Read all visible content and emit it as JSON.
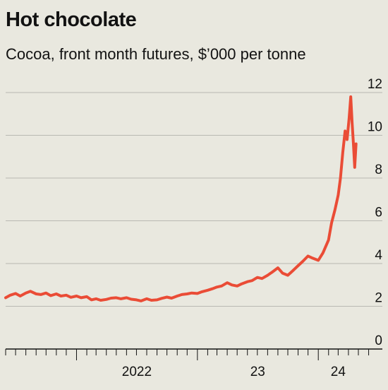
{
  "chart_data": {
    "type": "line",
    "title": "Hot chocolate",
    "subtitle": "Cocoa, front month futures, $’000 per tonne",
    "xlabel": "",
    "ylabel": "",
    "x_tick_labels": [
      "2022",
      "23",
      "24"
    ],
    "y_ticks": [
      0,
      2,
      4,
      6,
      8,
      10,
      12
    ],
    "ylim": [
      0,
      12
    ],
    "grid": true,
    "y_axis_side": "right",
    "x_domain": [
      "2021-06-01",
      "2024-05-01"
    ],
    "series": [
      {
        "color": "#ea4c36",
        "points": [
          [
            "2021-06-01",
            2.4
          ],
          [
            "2021-06-15",
            2.52
          ],
          [
            "2021-07-01",
            2.6
          ],
          [
            "2021-07-15",
            2.48
          ],
          [
            "2021-08-01",
            2.62
          ],
          [
            "2021-08-15",
            2.7
          ],
          [
            "2021-09-01",
            2.58
          ],
          [
            "2021-09-15",
            2.55
          ],
          [
            "2021-10-01",
            2.62
          ],
          [
            "2021-10-15",
            2.5
          ],
          [
            "2021-11-01",
            2.58
          ],
          [
            "2021-11-15",
            2.48
          ],
          [
            "2021-12-01",
            2.52
          ],
          [
            "2021-12-15",
            2.42
          ],
          [
            "2022-01-01",
            2.48
          ],
          [
            "2022-01-15",
            2.4
          ],
          [
            "2022-02-01",
            2.45
          ],
          [
            "2022-02-15",
            2.3
          ],
          [
            "2022-03-01",
            2.35
          ],
          [
            "2022-03-15",
            2.28
          ],
          [
            "2022-04-01",
            2.32
          ],
          [
            "2022-04-15",
            2.38
          ],
          [
            "2022-05-01",
            2.4
          ],
          [
            "2022-05-15",
            2.35
          ],
          [
            "2022-06-01",
            2.4
          ],
          [
            "2022-06-15",
            2.33
          ],
          [
            "2022-07-01",
            2.3
          ],
          [
            "2022-07-15",
            2.25
          ],
          [
            "2022-08-01",
            2.35
          ],
          [
            "2022-08-15",
            2.28
          ],
          [
            "2022-09-01",
            2.3
          ],
          [
            "2022-09-15",
            2.37
          ],
          [
            "2022-10-01",
            2.43
          ],
          [
            "2022-10-15",
            2.38
          ],
          [
            "2022-11-01",
            2.48
          ],
          [
            "2022-11-15",
            2.55
          ],
          [
            "2022-12-01",
            2.58
          ],
          [
            "2022-12-15",
            2.62
          ],
          [
            "2023-01-01",
            2.6
          ],
          [
            "2023-01-15",
            2.68
          ],
          [
            "2023-02-01",
            2.75
          ],
          [
            "2023-02-15",
            2.82
          ],
          [
            "2023-03-01",
            2.9
          ],
          [
            "2023-03-15",
            2.95
          ],
          [
            "2023-04-01",
            3.1
          ],
          [
            "2023-04-15",
            3.0
          ],
          [
            "2023-05-01",
            2.95
          ],
          [
            "2023-05-15",
            3.05
          ],
          [
            "2023-06-01",
            3.15
          ],
          [
            "2023-06-15",
            3.2
          ],
          [
            "2023-07-01",
            3.35
          ],
          [
            "2023-07-15",
            3.3
          ],
          [
            "2023-08-01",
            3.45
          ],
          [
            "2023-08-15",
            3.6
          ],
          [
            "2023-09-01",
            3.8
          ],
          [
            "2023-09-15",
            3.55
          ],
          [
            "2023-10-01",
            3.45
          ],
          [
            "2023-10-15",
            3.65
          ],
          [
            "2023-11-01",
            3.9
          ],
          [
            "2023-11-15",
            4.1
          ],
          [
            "2023-12-01",
            4.35
          ],
          [
            "2023-12-15",
            4.25
          ],
          [
            "2024-01-01",
            4.15
          ],
          [
            "2024-01-15",
            4.5
          ],
          [
            "2024-02-01",
            5.1
          ],
          [
            "2024-02-10",
            5.9
          ],
          [
            "2024-02-20",
            6.5
          ],
          [
            "2024-03-01",
            7.2
          ],
          [
            "2024-03-08",
            8.0
          ],
          [
            "2024-03-15",
            9.2
          ],
          [
            "2024-03-22",
            10.2
          ],
          [
            "2024-03-28",
            9.8
          ],
          [
            "2024-04-03",
            10.8
          ],
          [
            "2024-04-08",
            11.8
          ],
          [
            "2024-04-12",
            10.6
          ],
          [
            "2024-04-16",
            9.6
          ],
          [
            "2024-04-20",
            8.5
          ],
          [
            "2024-04-24",
            9.6
          ]
        ]
      }
    ]
  }
}
